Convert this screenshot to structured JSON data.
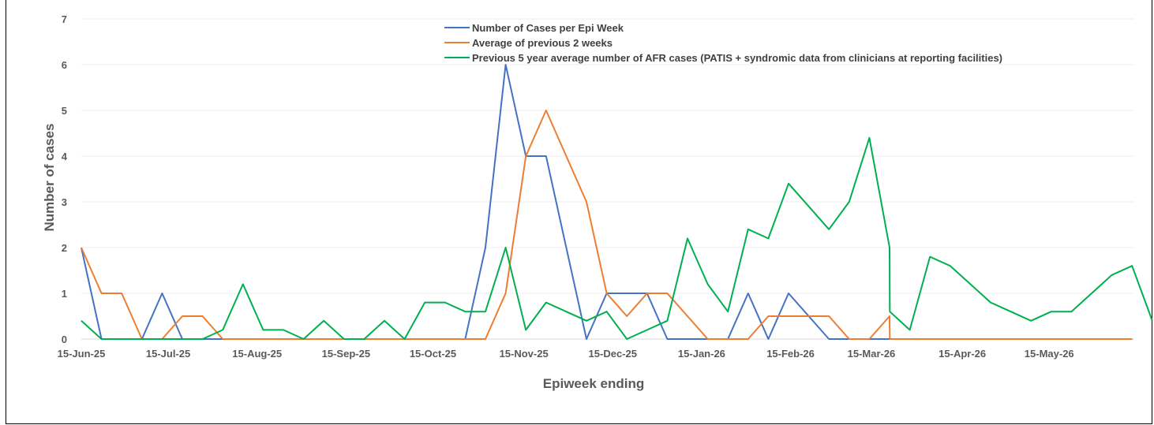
{
  "chart_data": {
    "type": "line",
    "xlabel": "Epiweek ending",
    "ylabel": "Number of cases",
    "ylim": [
      0,
      7
    ],
    "yticks": [
      0,
      1,
      2,
      3,
      4,
      5,
      6,
      7
    ],
    "xtick_labels": [
      "15-Jun-25",
      "15-Jul-25",
      "15-Aug-25",
      "15-Sep-25",
      "15-Oct-25",
      "15-Nov-25",
      "15-Dec-25",
      "15-Jan-26",
      "15-Feb-26",
      "15-Mar-26",
      "15-Apr-26",
      "15-May-26"
    ],
    "xtick_weeks": [
      0,
      4.3,
      8.7,
      13.1,
      17.4,
      21.9,
      26.3,
      30.7,
      35.1,
      39.1,
      43.6,
      47.9
    ],
    "grid": "horizontal",
    "legend_position": "top-center",
    "series": [
      {
        "name": "Number of Cases per Epi Week",
        "color": "#4472C4",
        "points": [
          [
            0,
            2
          ],
          [
            1,
            0
          ],
          [
            2,
            0
          ],
          [
            3,
            0
          ],
          [
            4,
            1
          ],
          [
            5,
            0
          ],
          [
            6,
            0
          ],
          [
            7,
            0
          ],
          [
            8,
            0
          ],
          [
            9,
            0
          ],
          [
            10,
            0
          ],
          [
            11,
            0
          ],
          [
            12,
            0
          ],
          [
            13,
            0
          ],
          [
            14,
            0
          ],
          [
            15,
            0
          ],
          [
            16,
            0
          ],
          [
            17,
            0
          ],
          [
            18,
            0
          ],
          [
            19,
            0
          ],
          [
            20,
            2
          ],
          [
            21,
            6
          ],
          [
            22,
            4
          ],
          [
            23,
            4
          ],
          [
            24,
            2
          ],
          [
            25,
            0
          ],
          [
            26,
            1
          ],
          [
            27,
            1
          ],
          [
            28,
            1
          ],
          [
            29,
            0
          ],
          [
            30,
            0
          ],
          [
            31,
            0
          ],
          [
            32,
            0
          ],
          [
            33,
            1
          ],
          [
            34,
            0
          ],
          [
            35,
            1
          ],
          [
            36,
            0.5
          ],
          [
            37,
            0
          ],
          [
            38,
            0
          ],
          [
            39,
            0
          ],
          [
            40,
            0
          ],
          [
            41,
            0
          ],
          [
            42,
            0
          ],
          [
            43,
            0
          ],
          [
            44,
            0
          ],
          [
            45,
            0
          ],
          [
            46,
            0
          ],
          [
            47,
            0
          ],
          [
            48,
            0
          ],
          [
            49,
            0
          ],
          [
            50,
            0
          ],
          [
            51,
            0
          ],
          [
            52,
            0
          ]
        ]
      },
      {
        "name": "Average of previous 2 weeks",
        "color": "#ED7D31",
        "points": [
          [
            0,
            2
          ],
          [
            1,
            1
          ],
          [
            2,
            1
          ],
          [
            3,
            0
          ],
          [
            4,
            0
          ],
          [
            5,
            0.5
          ],
          [
            6,
            0.5
          ],
          [
            7,
            0
          ],
          [
            8,
            0
          ],
          [
            9,
            0
          ],
          [
            10,
            0
          ],
          [
            11,
            0
          ],
          [
            12,
            0
          ],
          [
            13,
            0
          ],
          [
            14,
            0
          ],
          [
            15,
            0
          ],
          [
            16,
            0
          ],
          [
            17,
            0
          ],
          [
            18,
            0
          ],
          [
            19,
            0
          ],
          [
            20,
            0
          ],
          [
            21,
            1
          ],
          [
            22,
            4
          ],
          [
            23,
            5
          ],
          [
            24,
            4
          ],
          [
            25,
            3
          ],
          [
            26,
            1
          ],
          [
            27,
            0.5
          ],
          [
            28,
            1
          ],
          [
            29,
            1
          ],
          [
            30,
            0.5
          ],
          [
            31,
            0
          ],
          [
            32,
            0
          ],
          [
            33,
            0
          ],
          [
            34,
            0.5
          ],
          [
            35,
            0.5
          ],
          [
            36,
            0.5
          ],
          [
            37,
            0.5
          ],
          [
            38,
            0
          ],
          [
            39,
            0
          ],
          [
            40,
            0.5
          ],
          [
            40.01,
            0
          ],
          [
            41,
            0
          ],
          [
            42,
            0
          ],
          [
            43,
            0
          ],
          [
            44,
            0
          ],
          [
            45,
            0
          ],
          [
            46,
            0
          ],
          [
            47,
            0
          ],
          [
            48,
            0
          ],
          [
            49,
            0
          ],
          [
            50,
            0
          ],
          [
            51,
            0
          ],
          [
            52,
            0
          ]
        ]
      },
      {
        "name": "Previous 5 year average number of AFR cases (PATIS + syndromic data from clinicians at reporting facilities)",
        "color": "#00B050",
        "points": [
          [
            0,
            0.4
          ],
          [
            1,
            0
          ],
          [
            2,
            0
          ],
          [
            3,
            0
          ],
          [
            4,
            0
          ],
          [
            5,
            0
          ],
          [
            6,
            0
          ],
          [
            7,
            0.2
          ],
          [
            8,
            1.2
          ],
          [
            9,
            0.2
          ],
          [
            10,
            0.2
          ],
          [
            11,
            0
          ],
          [
            12,
            0.4
          ],
          [
            13,
            0
          ],
          [
            14,
            0
          ],
          [
            15,
            0.4
          ],
          [
            16,
            0
          ],
          [
            17,
            0.8
          ],
          [
            18,
            0.8
          ],
          [
            19,
            0.6
          ],
          [
            20,
            0.6
          ],
          [
            21,
            2
          ],
          [
            22,
            0.2
          ],
          [
            23,
            0.8
          ],
          [
            24,
            0.6
          ],
          [
            25,
            0.4
          ],
          [
            26,
            0.6
          ],
          [
            27,
            0
          ],
          [
            28,
            0.2
          ],
          [
            29,
            0.4
          ],
          [
            30,
            2.2
          ],
          [
            31,
            1.2
          ],
          [
            32,
            0.6
          ],
          [
            33,
            2.4
          ],
          [
            34,
            2.2
          ],
          [
            35,
            3.4
          ],
          [
            36,
            2.9
          ],
          [
            37,
            2.4
          ],
          [
            38,
            3
          ],
          [
            39,
            4.4
          ],
          [
            40,
            2
          ],
          [
            40.01,
            0.6
          ],
          [
            41,
            0.2
          ],
          [
            42,
            1.8
          ],
          [
            43,
            1.6
          ],
          [
            44,
            1.2
          ],
          [
            45,
            0.8
          ],
          [
            46,
            0.6
          ],
          [
            47,
            0.4
          ],
          [
            48,
            0.6
          ],
          [
            49,
            0.6
          ],
          [
            50,
            1
          ],
          [
            51,
            1.4
          ],
          [
            52,
            1.6
          ],
          [
            53,
            0.4
          ]
        ]
      }
    ]
  }
}
